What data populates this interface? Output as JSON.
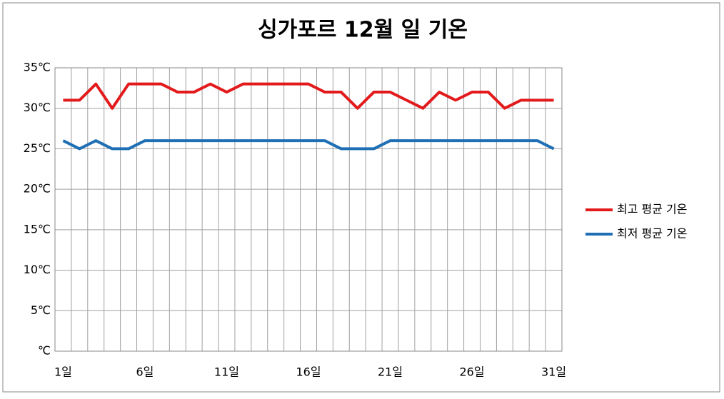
{
  "chart_data": {
    "type": "line",
    "title": "싱가포르 12월 일 기온",
    "categories": [
      "1일",
      null,
      null,
      null,
      null,
      "6일",
      null,
      null,
      null,
      null,
      "11일",
      null,
      null,
      null,
      null,
      "16일",
      null,
      null,
      null,
      null,
      "21일",
      null,
      null,
      null,
      null,
      "26일",
      null,
      null,
      null,
      null,
      "31일"
    ],
    "series": [
      {
        "name": "최고 평균 기온",
        "color": "#e31a1c",
        "values": [
          31,
          31,
          33,
          30,
          33,
          33,
          33,
          32,
          32,
          33,
          32,
          33,
          33,
          33,
          33,
          33,
          32,
          32,
          30,
          32,
          32,
          31,
          30,
          32,
          31,
          32,
          32,
          30,
          31,
          31,
          31
        ]
      },
      {
        "name": "최저 평균 기온",
        "color": "#1f6fb5",
        "values": [
          26,
          25,
          26,
          25,
          25,
          26,
          26,
          26,
          26,
          26,
          26,
          26,
          26,
          26,
          26,
          26,
          26,
          25,
          25,
          25,
          26,
          26,
          26,
          26,
          26,
          26,
          26,
          26,
          26,
          26,
          25
        ]
      }
    ],
    "ylim": [
      0,
      35
    ],
    "yticks": [
      {
        "value": 0,
        "label": "℃"
      },
      {
        "value": 5,
        "label": "5℃"
      },
      {
        "value": 10,
        "label": "10℃"
      },
      {
        "value": 15,
        "label": "15℃"
      },
      {
        "value": 20,
        "label": "20℃"
      },
      {
        "value": 25,
        "label": "25℃"
      },
      {
        "value": 30,
        "label": "30℃"
      },
      {
        "value": 35,
        "label": "35℃"
      }
    ],
    "grid": true,
    "legend": "right"
  }
}
